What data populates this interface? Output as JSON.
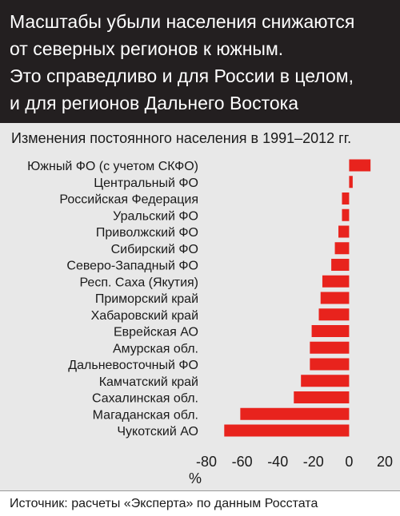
{
  "headline": {
    "lines": [
      "Масштабы убыли населения снижаются",
      "от северных регионов к южным.",
      "Это справедливо и для России в целом,",
      "и для регионов Дальнего Востока"
    ]
  },
  "colors": {
    "header_bg": "#231f20",
    "header_text": "#ffffff",
    "chart_bg": "#e8e8e8",
    "bar": "#e8231d"
  },
  "chart_data": {
    "type": "bar",
    "orientation": "horizontal",
    "title": "Изменения постоянного населения в 1991–2012 гг.",
    "xlabel": "%",
    "ylabel": "",
    "xlim": [
      -80,
      20
    ],
    "xticks": [
      "-80",
      "-60",
      "-40",
      "-20",
      "0",
      "20"
    ],
    "categories": [
      "Южный ФО (с учетом СКФО)",
      "Центральный ФО",
      "Российская Федерация",
      "Уральский ФО",
      "Приволжский ФО",
      "Сибирский ФО",
      "Северо-Западный ФО",
      "Респ. Саха (Якутия)",
      "Приморский край",
      "Хабаровский край",
      "Еврейская АО",
      "Амурская обл.",
      "Дальневосточный ФО",
      "Камчатский край",
      "Сахалинская обл.",
      "Магаданская обл.",
      "Чукотский АО"
    ],
    "values": [
      12,
      2,
      -4,
      -4,
      -6,
      -8,
      -10,
      -15,
      -16,
      -17,
      -21,
      -22,
      -22,
      -27,
      -31,
      -61,
      -70
    ],
    "grid": false,
    "legend": "none"
  },
  "footer": {
    "source": "Источник: расчеты «Эксперта» по данным Росстата"
  }
}
